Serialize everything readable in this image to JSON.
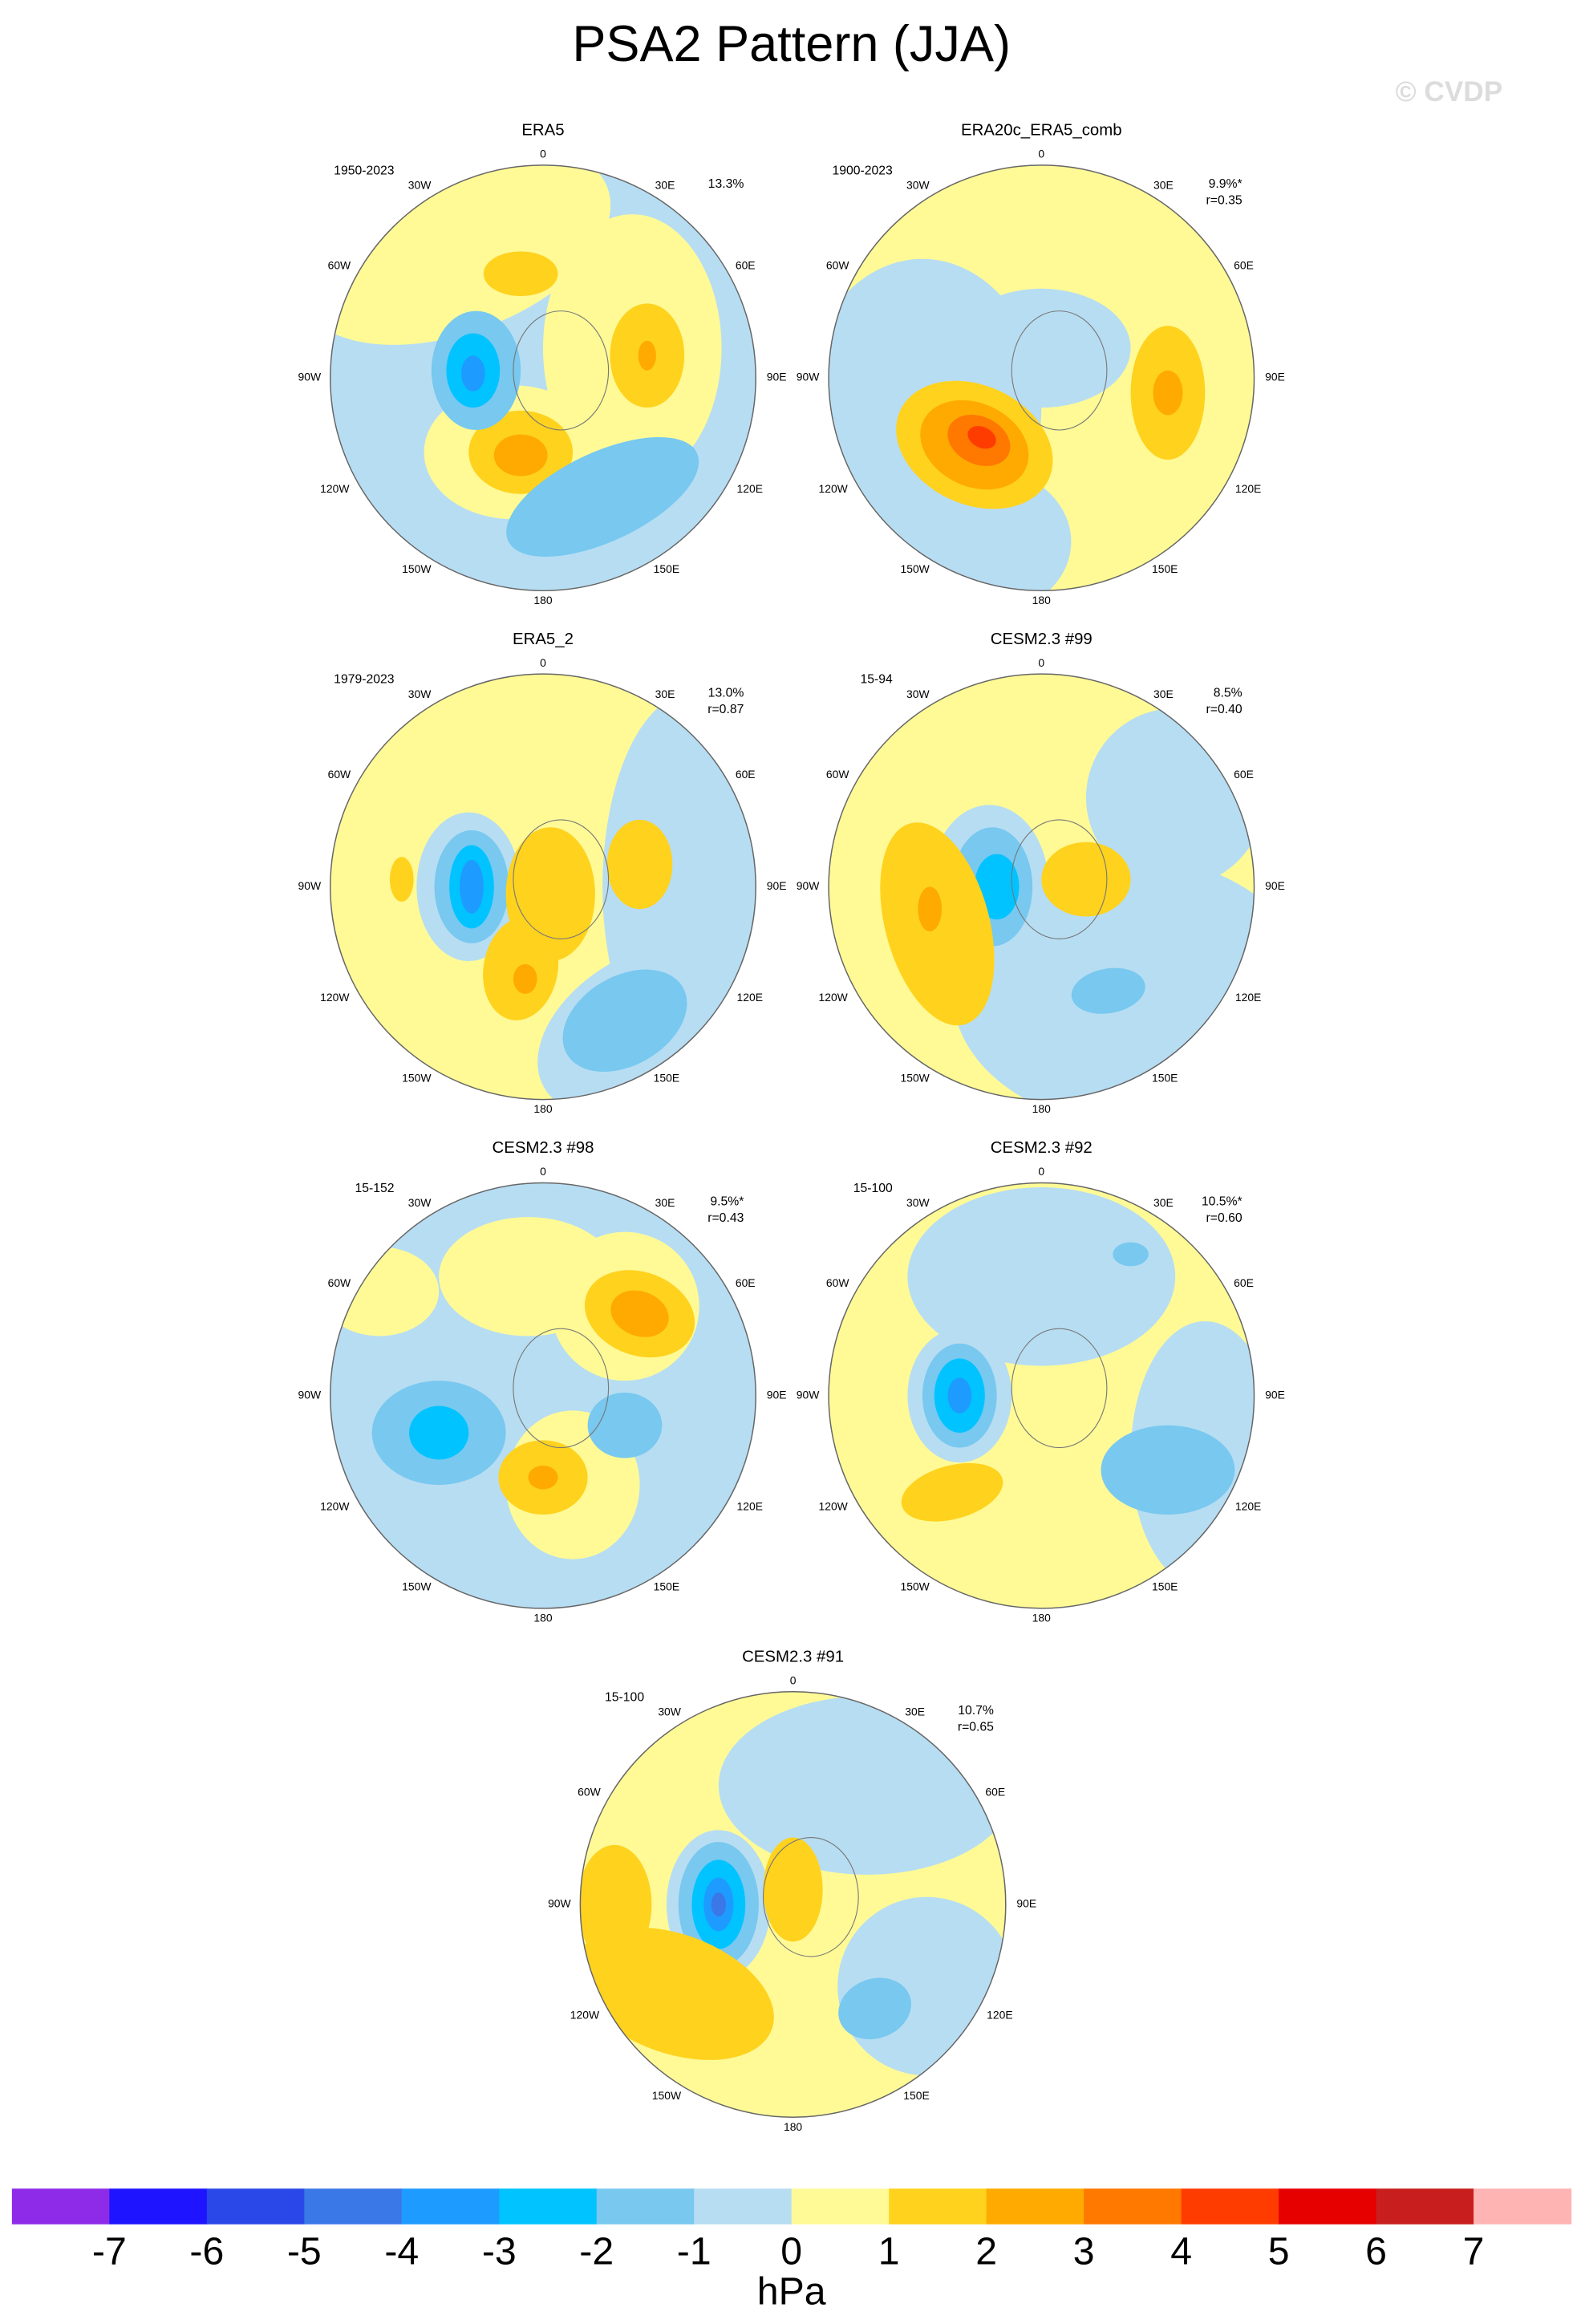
{
  "title": "PSA2 Pattern (JJA)",
  "watermark": "© CVDP",
  "longitude_labels": [
    "0",
    "30W",
    "30E",
    "60W",
    "60E",
    "90W",
    "90E",
    "120W",
    "120E",
    "150W",
    "150E",
    "180"
  ],
  "panels": [
    {
      "title": "ERA5",
      "period": "1950-2023",
      "variance": "13.3%"
    },
    {
      "title": "ERA20c_ERA5_comb",
      "period": "1900-2023",
      "variance": "9.9%*",
      "correlation": "r=0.35"
    },
    {
      "title": "ERA5_2",
      "period": "1979-2023",
      "variance": "13.0%",
      "correlation": "r=0.87"
    },
    {
      "title": "CESM2.3 #99",
      "period": "15-94",
      "variance": "8.5%",
      "correlation": "r=0.40"
    },
    {
      "title": "CESM2.3 #98",
      "period": "15-152",
      "variance": "9.5%*",
      "correlation": "r=0.43"
    },
    {
      "title": "CESM2.3 #92",
      "period": "15-100",
      "variance": "10.5%*",
      "correlation": "r=0.60"
    },
    {
      "title": "CESM2.3 #91",
      "period": "15-100",
      "variance": "10.7%",
      "correlation": "r=0.65"
    }
  ],
  "colorbar": {
    "colors": [
      "#8d2be8",
      "#1e14ff",
      "#2a48e8",
      "#3a78e8",
      "#1e9bff",
      "#00c3ff",
      "#78c8f0",
      "#b7ddf2",
      "#fffa96",
      "#ffd21e",
      "#ffaa00",
      "#ff7800",
      "#ff3c00",
      "#e60000",
      "#c81e1e",
      "#ffb4b4"
    ],
    "labels": [
      -7,
      -6,
      -5,
      -4,
      -3,
      -2,
      -1,
      0,
      1,
      2,
      3,
      4,
      5,
      6,
      7
    ],
    "unit": "hPa"
  }
}
